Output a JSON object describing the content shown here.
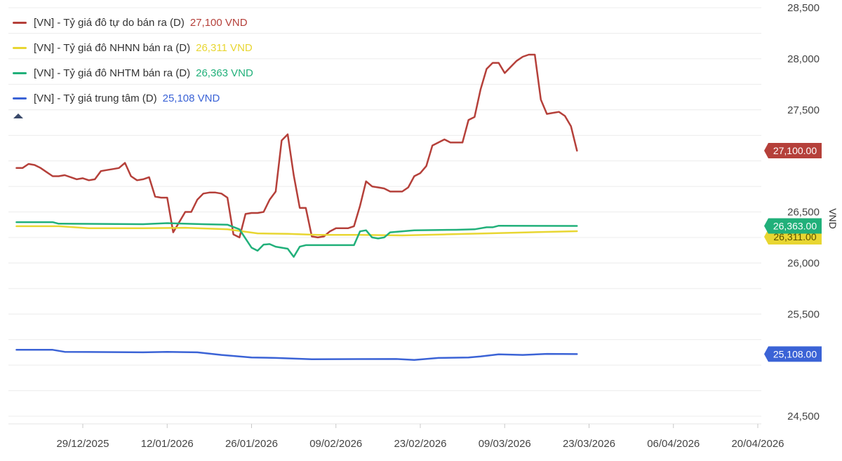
{
  "chart_data": {
    "type": "line",
    "ylabel": "VND",
    "ylim": [
      24400,
      28600
    ],
    "y_ticks": [
      "28,500",
      "28,000",
      "27,500",
      "26,500",
      "26,000",
      "25,500",
      "24,500"
    ],
    "y_tick_values": [
      28500,
      28000,
      27500,
      26500,
      26000,
      25500,
      24500
    ],
    "x_ticks": [
      "29/12/2025",
      "12/01/2026",
      "26/01/2026",
      "09/02/2026",
      "23/02/2026",
      "09/03/2026",
      "23/03/2026",
      "06/04/2026",
      "20/04/2026"
    ],
    "xlim": [
      "2025-12-18",
      "2026-04-27"
    ],
    "legend_position": "top-left",
    "grid": "horizontal",
    "series": [
      {
        "name": "[VN] - Tỷ giá đô tự do bán ra (D)",
        "value_label": "27,100 VND",
        "end_label": "27,100.00",
        "color": "#b5403a",
        "label_bg": "#b5403a",
        "points": [
          [
            "2025-12-18",
            26930
          ],
          [
            "2025-12-19",
            26930
          ],
          [
            "2025-12-20",
            26970
          ],
          [
            "2025-12-21",
            26960
          ],
          [
            "2025-12-22",
            26930
          ],
          [
            "2025-12-23",
            26890
          ],
          [
            "2025-12-24",
            26850
          ],
          [
            "2025-12-25",
            26850
          ],
          [
            "2025-12-26",
            26860
          ],
          [
            "2025-12-27",
            26840
          ],
          [
            "2025-12-28",
            26820
          ],
          [
            "2025-12-29",
            26830
          ],
          [
            "2025-12-30",
            26810
          ],
          [
            "2025-12-31",
            26820
          ],
          [
            "2026-01-01",
            26900
          ],
          [
            "2026-01-02",
            26910
          ],
          [
            "2026-01-03",
            26920
          ],
          [
            "2026-01-04",
            26930
          ],
          [
            "2026-01-05",
            26980
          ],
          [
            "2026-01-06",
            26850
          ],
          [
            "2026-01-07",
            26810
          ],
          [
            "2026-01-08",
            26820
          ],
          [
            "2026-01-09",
            26840
          ],
          [
            "2026-01-10",
            26650
          ],
          [
            "2026-01-11",
            26640
          ],
          [
            "2026-01-12",
            26640
          ],
          [
            "2026-01-13",
            26300
          ],
          [
            "2026-01-14",
            26400
          ],
          [
            "2026-01-15",
            26500
          ],
          [
            "2026-01-16",
            26500
          ],
          [
            "2026-01-17",
            26620
          ],
          [
            "2026-01-18",
            26680
          ],
          [
            "2026-01-19",
            26690
          ],
          [
            "2026-01-20",
            26690
          ],
          [
            "2026-01-21",
            26680
          ],
          [
            "2026-01-22",
            26640
          ],
          [
            "2026-01-23",
            26280
          ],
          [
            "2026-01-24",
            26250
          ],
          [
            "2026-01-25",
            26480
          ],
          [
            "2026-01-26",
            26490
          ],
          [
            "2026-01-27",
            26490
          ],
          [
            "2026-01-28",
            26500
          ],
          [
            "2026-01-29",
            26620
          ],
          [
            "2026-01-30",
            26700
          ],
          [
            "2026-01-31",
            27200
          ],
          [
            "2026-02-01",
            27260
          ],
          [
            "2026-02-02",
            26860
          ],
          [
            "2026-02-03",
            26540
          ],
          [
            "2026-02-04",
            26540
          ],
          [
            "2026-02-05",
            26260
          ],
          [
            "2026-02-06",
            26250
          ],
          [
            "2026-02-07",
            26260
          ],
          [
            "2026-02-08",
            26310
          ],
          [
            "2026-02-09",
            26340
          ],
          [
            "2026-02-10",
            26340
          ],
          [
            "2026-02-11",
            26340
          ],
          [
            "2026-02-12",
            26360
          ],
          [
            "2026-02-13",
            26560
          ],
          [
            "2026-02-14",
            26800
          ],
          [
            "2026-02-15",
            26750
          ],
          [
            "2026-02-16",
            26740
          ],
          [
            "2026-02-17",
            26730
          ],
          [
            "2026-02-18",
            26700
          ],
          [
            "2026-02-19",
            26700
          ],
          [
            "2026-02-20",
            26700
          ],
          [
            "2026-02-21",
            26740
          ],
          [
            "2026-02-22",
            26850
          ],
          [
            "2026-02-23",
            26880
          ],
          [
            "2026-02-24",
            26950
          ],
          [
            "2026-02-25",
            27150
          ],
          [
            "2026-02-26",
            27180
          ],
          [
            "2026-02-27",
            27210
          ],
          [
            "2026-02-28",
            27180
          ],
          [
            "2026-03-01",
            27180
          ],
          [
            "2026-03-02",
            27180
          ],
          [
            "2026-03-03",
            27400
          ],
          [
            "2026-03-04",
            27430
          ],
          [
            "2026-03-05",
            27700
          ],
          [
            "2026-03-06",
            27900
          ],
          [
            "2026-03-07",
            27960
          ],
          [
            "2026-03-08",
            27960
          ],
          [
            "2026-03-09",
            27860
          ],
          [
            "2026-03-10",
            27920
          ],
          [
            "2026-03-11",
            27980
          ],
          [
            "2026-03-12",
            28020
          ],
          [
            "2026-03-13",
            28040
          ],
          [
            "2026-03-14",
            28040
          ],
          [
            "2026-03-15",
            27600
          ],
          [
            "2026-03-16",
            27460
          ],
          [
            "2026-03-17",
            27470
          ],
          [
            "2026-03-18",
            27480
          ],
          [
            "2026-03-19",
            27440
          ],
          [
            "2026-03-20",
            27340
          ],
          [
            "2026-03-21",
            27100
          ]
        ]
      },
      {
        "name": "[VN] - Tỷ giá đô NHNN bán ra (D)",
        "value_label": "26,311 VND",
        "end_label": "26,311.00",
        "color": "#e8d632",
        "label_bg": "#e8d632",
        "points": [
          [
            "2025-12-18",
            26360
          ],
          [
            "2025-12-25",
            26360
          ],
          [
            "2025-12-30",
            26340
          ],
          [
            "2026-01-08",
            26340
          ],
          [
            "2026-01-15",
            26345
          ],
          [
            "2026-01-22",
            26330
          ],
          [
            "2026-01-27",
            26290
          ],
          [
            "2026-02-01",
            26285
          ],
          [
            "2026-02-06",
            26275
          ],
          [
            "2026-02-13",
            26275
          ],
          [
            "2026-02-20",
            26270
          ],
          [
            "2026-02-27",
            26280
          ],
          [
            "2026-03-06",
            26290
          ],
          [
            "2026-03-13",
            26300
          ],
          [
            "2026-03-21",
            26311
          ]
        ]
      },
      {
        "name": "[VN] - Tỷ giá đô NHTM bán ra (D)",
        "value_label": "26,363 VND",
        "end_label": "26,363.00",
        "color": "#21b07a",
        "label_bg": "#21b07a",
        "points": [
          [
            "2025-12-18",
            26400
          ],
          [
            "2025-12-24",
            26400
          ],
          [
            "2025-12-25",
            26385
          ],
          [
            "2026-01-08",
            26380
          ],
          [
            "2026-01-12",
            26390
          ],
          [
            "2026-01-18",
            26380
          ],
          [
            "2026-01-22",
            26375
          ],
          [
            "2026-01-24",
            26330
          ],
          [
            "2026-01-25",
            26240
          ],
          [
            "2026-01-26",
            26150
          ],
          [
            "2026-01-27",
            26120
          ],
          [
            "2026-01-28",
            26180
          ],
          [
            "2026-01-29",
            26185
          ],
          [
            "2026-01-30",
            26160
          ],
          [
            "2026-02-01",
            26140
          ],
          [
            "2026-02-02",
            26060
          ],
          [
            "2026-02-03",
            26160
          ],
          [
            "2026-02-04",
            26175
          ],
          [
            "2026-02-05",
            26175
          ],
          [
            "2026-02-12",
            26175
          ],
          [
            "2026-02-13",
            26310
          ],
          [
            "2026-02-14",
            26320
          ],
          [
            "2026-02-15",
            26250
          ],
          [
            "2026-02-16",
            26240
          ],
          [
            "2026-02-17",
            26250
          ],
          [
            "2026-02-18",
            26300
          ],
          [
            "2026-02-22",
            26320
          ],
          [
            "2026-03-01",
            26325
          ],
          [
            "2026-03-04",
            26330
          ],
          [
            "2026-03-06",
            26350
          ],
          [
            "2026-03-07",
            26350
          ],
          [
            "2026-03-08",
            26365
          ],
          [
            "2026-03-21",
            26363
          ]
        ]
      },
      {
        "name": "[VN] - Tỷ giá trung tâm (D)",
        "value_label": "25,108 VND",
        "end_label": "25,108.00",
        "color": "#3b63d6",
        "label_bg": "#3b63d6",
        "points": [
          [
            "2025-12-18",
            25150
          ],
          [
            "2025-12-24",
            25150
          ],
          [
            "2025-12-26",
            25130
          ],
          [
            "2026-01-08",
            25125
          ],
          [
            "2026-01-12",
            25130
          ],
          [
            "2026-01-17",
            25125
          ],
          [
            "2026-01-21",
            25100
          ],
          [
            "2026-01-26",
            25075
          ],
          [
            "2026-01-30",
            25070
          ],
          [
            "2026-02-05",
            25058
          ],
          [
            "2026-02-19",
            25060
          ],
          [
            "2026-02-22",
            25050
          ],
          [
            "2026-02-26",
            25070
          ],
          [
            "2026-03-03",
            25075
          ],
          [
            "2026-03-05",
            25085
          ],
          [
            "2026-03-08",
            25105
          ],
          [
            "2026-03-12",
            25100
          ],
          [
            "2026-03-16",
            25110
          ],
          [
            "2026-03-21",
            25108
          ]
        ]
      }
    ]
  }
}
